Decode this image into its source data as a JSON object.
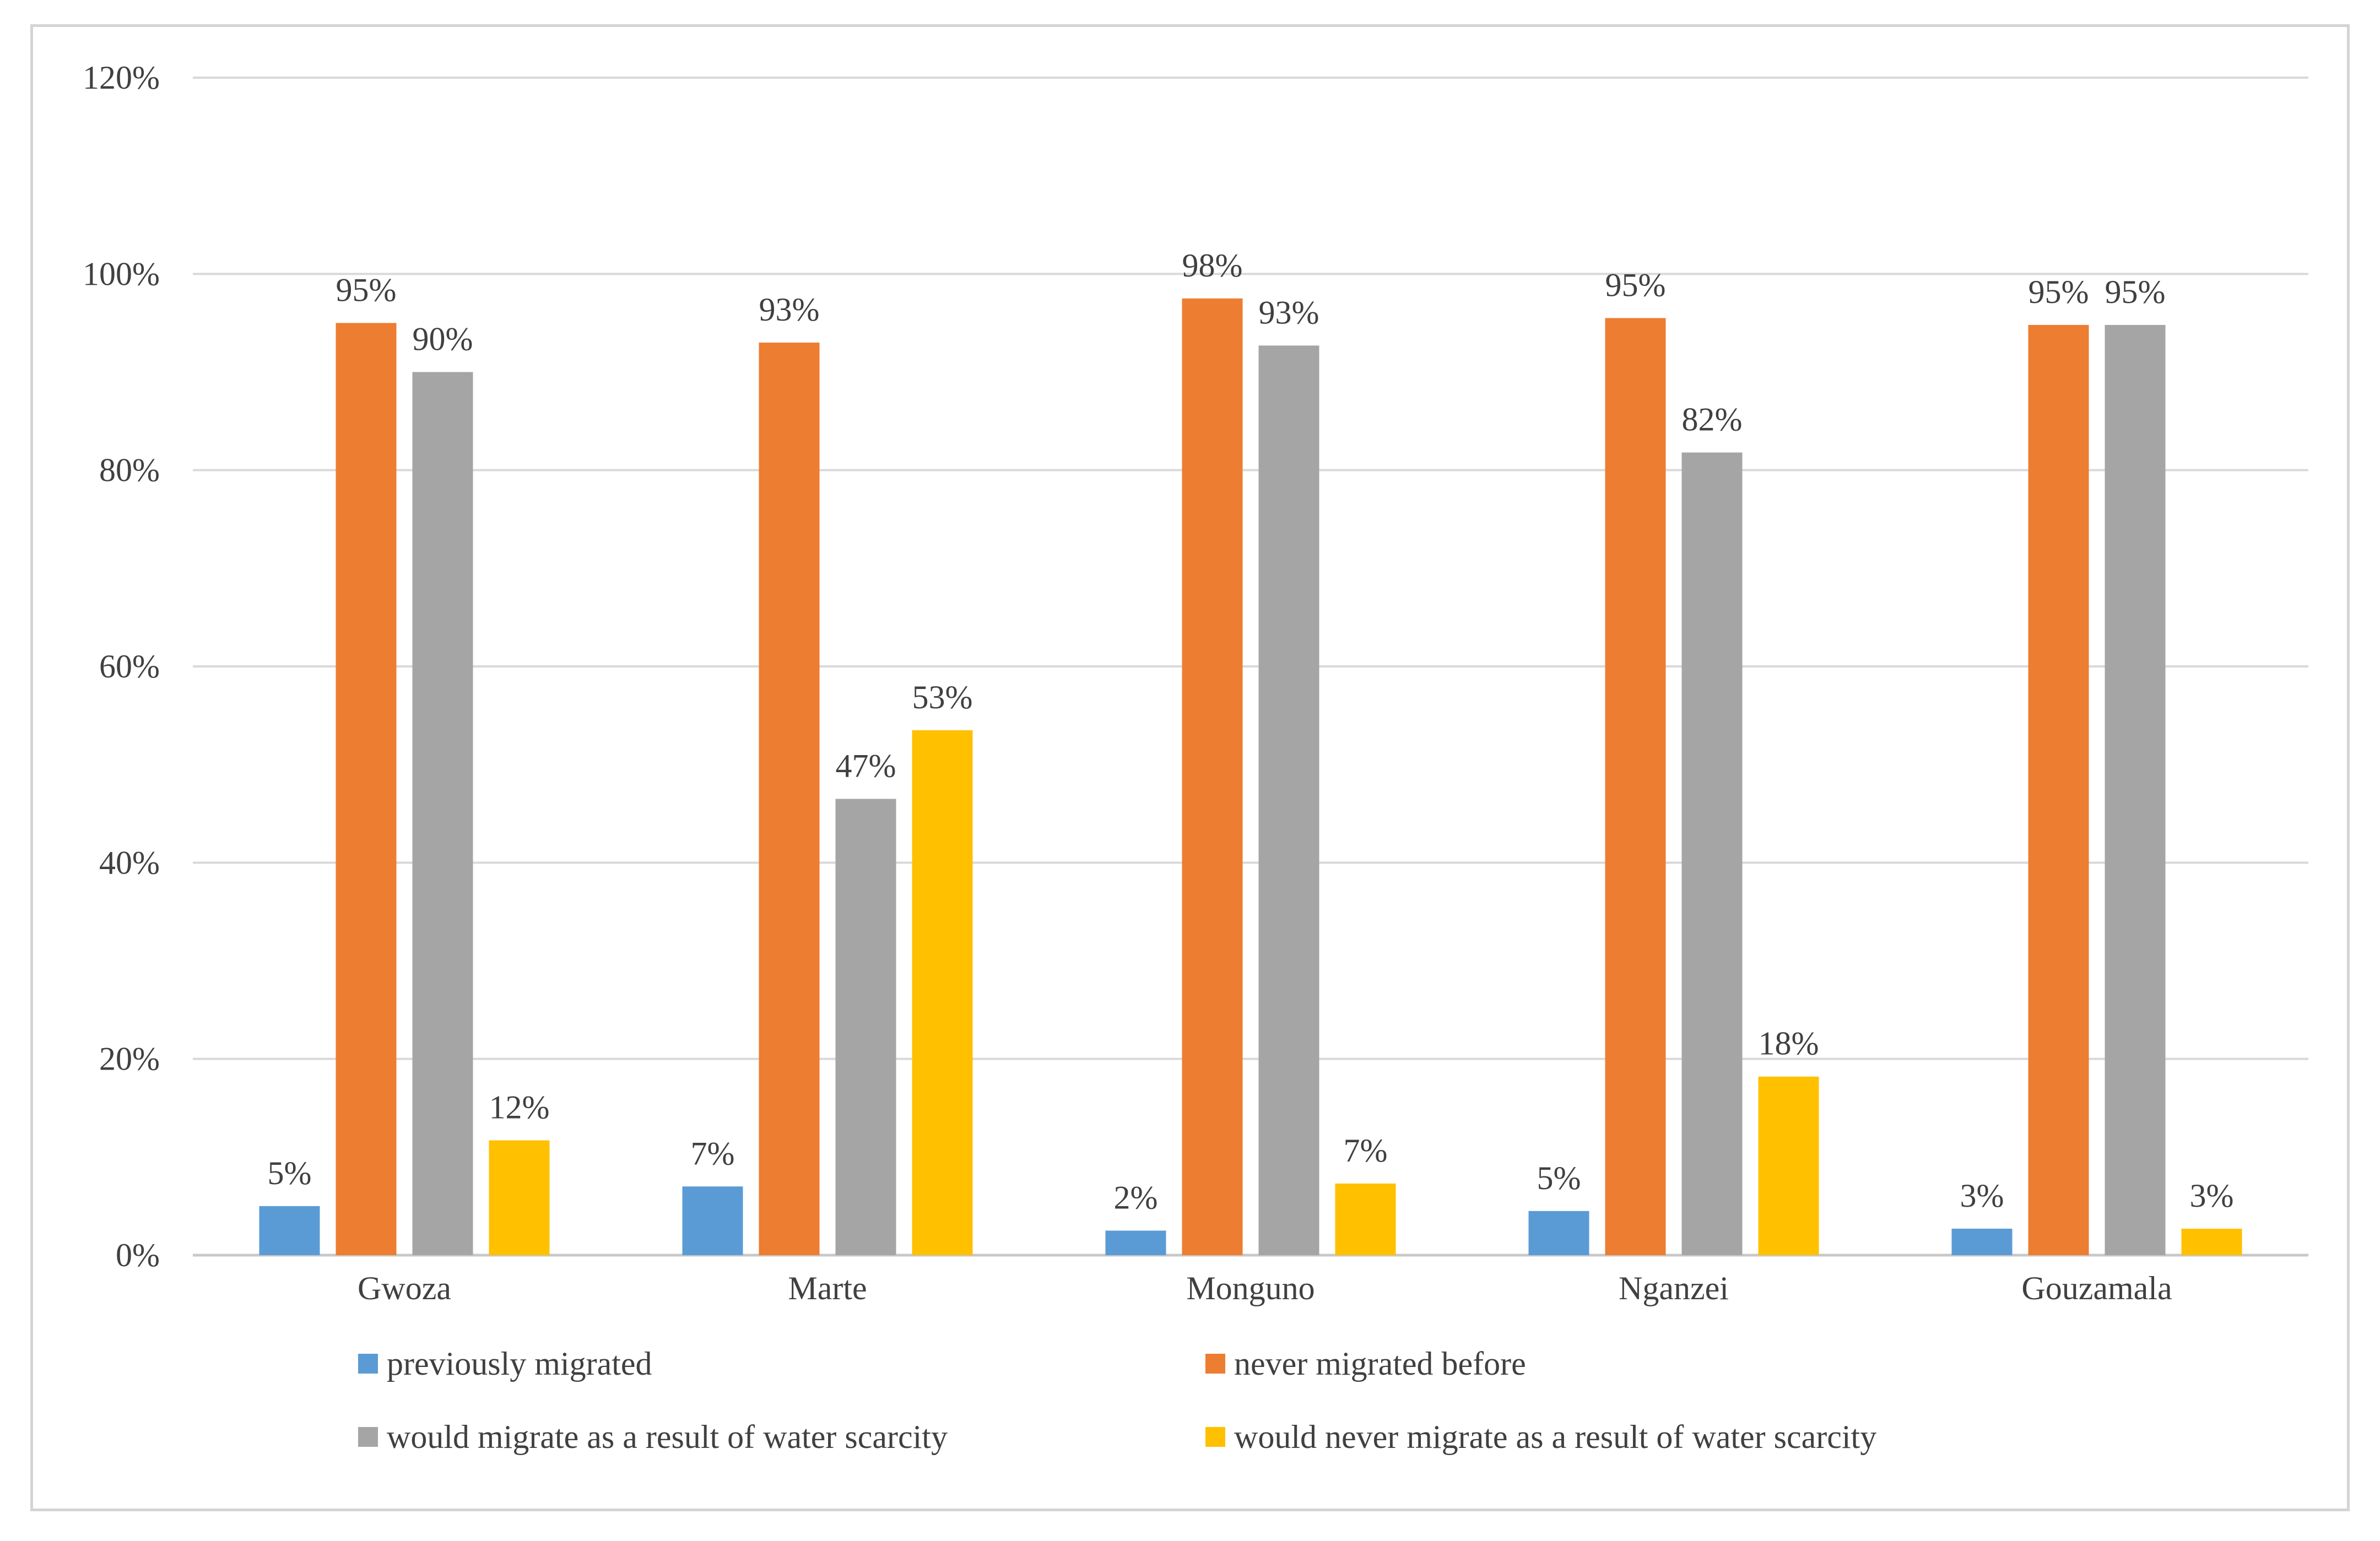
{
  "chart_data": {
    "type": "bar",
    "title": "",
    "xlabel": "",
    "ylabel": "",
    "ylim": [
      0,
      1.2
    ],
    "yticks": [
      0,
      0.2,
      0.4,
      0.6,
      0.8,
      1.0,
      1.2
    ],
    "ytick_labels": [
      "0%",
      "20%",
      "40%",
      "60%",
      "80%",
      "100%",
      "120%"
    ],
    "grid": true,
    "legend_position": "bottom",
    "categories": [
      "Gwoza",
      "Marte",
      "Monguno",
      "Nganzei",
      "Gouzamala"
    ],
    "series": [
      {
        "name": "previously migrated",
        "color": "#5b9bd5",
        "values": [
          0.05,
          0.07,
          0.025,
          0.045,
          0.027
        ],
        "labels": [
          "5%",
          "7%",
          "2%",
          "5%",
          "3%"
        ]
      },
      {
        "name": "never migrated before",
        "color": "#ed7d31",
        "values": [
          0.95,
          0.93,
          0.975,
          0.955,
          0.948
        ],
        "labels": [
          "95%",
          "93%",
          "98%",
          "95%",
          "95%"
        ]
      },
      {
        "name": "would migrate as a result of water scarcity",
        "color": "#a5a5a5",
        "values": [
          0.9,
          0.465,
          0.927,
          0.818,
          0.948
        ],
        "labels": [
          "90%",
          "47%",
          "93%",
          "82%",
          "95%"
        ]
      },
      {
        "name": "would never migrate as a result of water scarcity",
        "color": "#ffc000",
        "values": [
          0.117,
          0.535,
          0.073,
          0.182,
          0.027
        ],
        "labels": [
          "12%",
          "53%",
          "7%",
          "18%",
          "3%"
        ]
      }
    ]
  }
}
